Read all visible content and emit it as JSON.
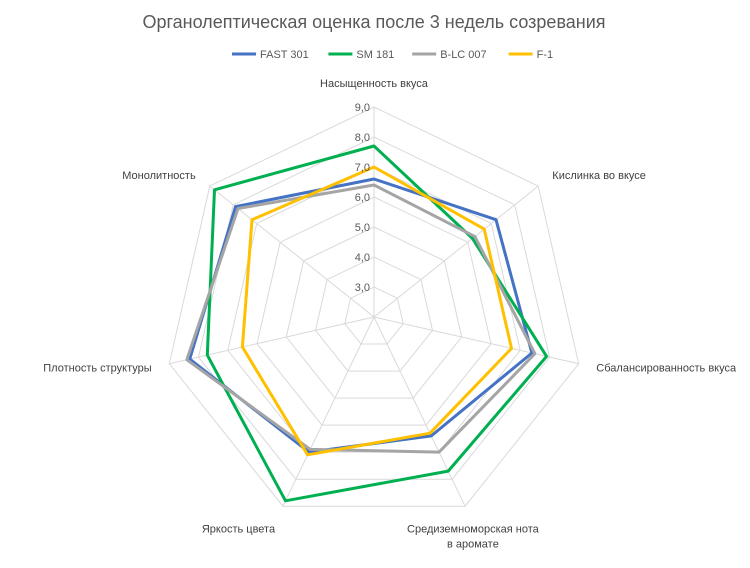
{
  "chart_data": {
    "type": "radar",
    "title": "Органолептическая оценка после 3 недель созревания",
    "categories": [
      "Насыщенность вкуса",
      "Кислинка во вкусе",
      "Сбалансированность вкуса",
      "Средиземноморская нота в ароматe",
      "Яркость цвета",
      "Плотность структуры",
      "Монолитность"
    ],
    "ticks": [
      "3,0",
      "4,0",
      "5,0",
      "6,0",
      "7,0",
      "8,0",
      "9,0"
    ],
    "rlim": [
      2,
      9
    ],
    "grid": true,
    "legend_position": "top",
    "series": [
      {
        "name": "FAST 301",
        "color": "#4472c4",
        "values": [
          6.6,
          7.2,
          7.4,
          6.4,
          7.0,
          8.3,
          7.9
        ]
      },
      {
        "name": "SM 181",
        "color": "#00b050",
        "values": [
          7.7,
          6.2,
          7.9,
          7.7,
          8.8,
          7.7,
          8.8
        ]
      },
      {
        "name": "B-LC 007",
        "color": "#a5a5a5",
        "values": [
          6.4,
          6.3,
          7.5,
          7.0,
          6.9,
          8.4,
          7.8
        ]
      },
      {
        "name": "F-1",
        "color": "#ffc000",
        "values": [
          7.0,
          6.7,
          6.7,
          6.3,
          7.1,
          6.5,
          7.2
        ]
      }
    ]
  }
}
